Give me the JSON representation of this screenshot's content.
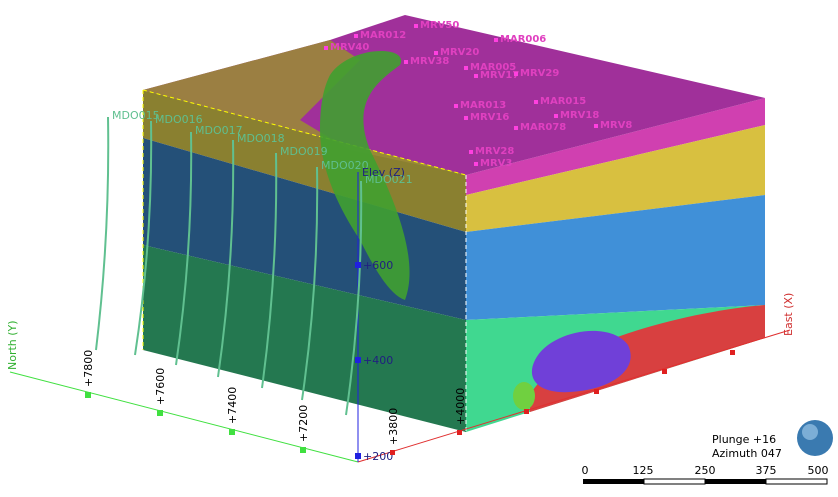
{
  "drillholes": [
    "MDO015",
    "MDO016",
    "MDO017",
    "MDO018",
    "MDO019",
    "MDO020",
    "MDO021"
  ],
  "survey_labels": [
    "MRV50",
    "MAR012",
    "MAR006",
    "MRV40",
    "MRV20",
    "MRV38",
    "MAR005",
    "MRV17",
    "MRV29",
    "MAR013",
    "MAR015",
    "MAR078",
    "MRV16",
    "MRV8",
    "MRV18",
    "MRV28",
    "MRV3"
  ],
  "axes": {
    "elev": {
      "title": "Elev (Z)",
      "ticks": [
        "+600",
        "+400",
        "+200"
      ]
    },
    "north": {
      "title": "North (Y)",
      "ticks": [
        "+7800",
        "+7600",
        "+7400",
        "+7200"
      ]
    },
    "east": {
      "title": "East (X)",
      "ticks": [
        "+3800",
        "+4000"
      ]
    }
  },
  "view": {
    "plunge": "Plunge +16",
    "azimuth": "Azimuth 047"
  },
  "scale_bar": {
    "ticks": [
      "0",
      "125",
      "250",
      "375",
      "500"
    ]
  }
}
